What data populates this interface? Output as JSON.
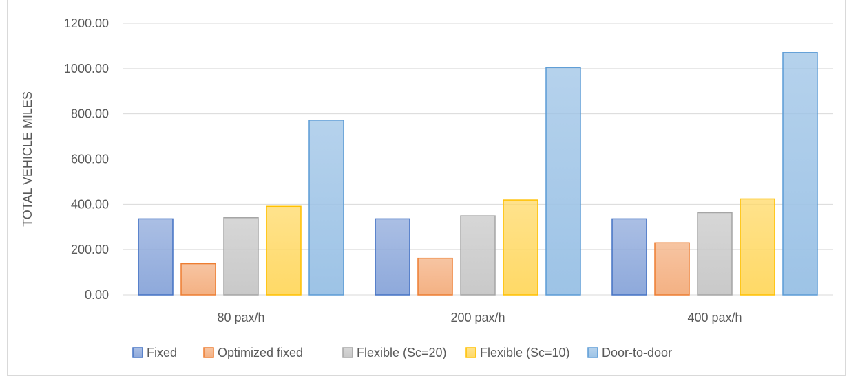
{
  "chart_data": {
    "type": "bar",
    "title": "",
    "xlabel": "",
    "ylabel": "TOTAL VEHICLE MILES",
    "ylim": [
      0,
      1200
    ],
    "yticks": [
      "0.00",
      "200.00",
      "400.00",
      "600.00",
      "800.00",
      "1000.00",
      "1200.00"
    ],
    "grid": true,
    "legend_position": "bottom",
    "categories": [
      "80 pax/h",
      "200 pax/h",
      "400 pax/h"
    ],
    "series": [
      {
        "name": "Fixed",
        "values": [
          336,
          336,
          336
        ],
        "color": "#8ea9db",
        "stroke": "#4472c4"
      },
      {
        "name": "Optimized fixed",
        "values": [
          138,
          162,
          230
        ],
        "color": "#f4b183",
        "stroke": "#ed7d31"
      },
      {
        "name": "Flexible (Sc=20)",
        "values": [
          341,
          349,
          363
        ],
        "color": "#c9c9c9",
        "stroke": "#a5a5a5"
      },
      {
        "name": "Flexible (Sc=10)",
        "values": [
          391,
          419,
          424
        ],
        "color": "#ffd966",
        "stroke": "#ffc000"
      },
      {
        "name": "Door-to-door",
        "values": [
          772,
          1005,
          1072
        ],
        "color": "#9dc3e6",
        "stroke": "#5b9bd5"
      }
    ]
  }
}
